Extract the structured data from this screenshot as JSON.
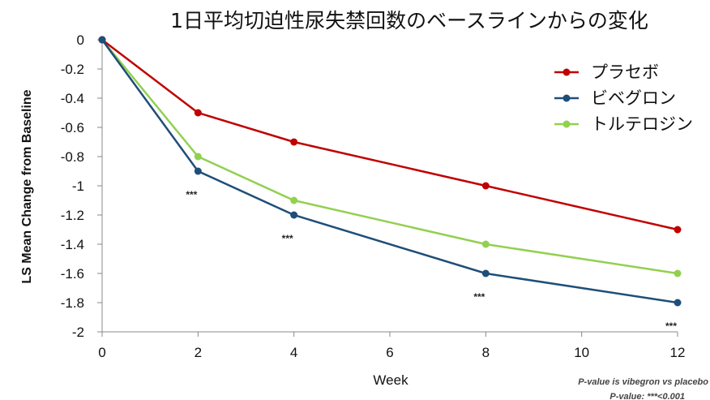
{
  "chart_data": {
    "type": "line",
    "title": "1日平均切迫性尿失禁回数のベースラインからの変化",
    "xlabel": "Week",
    "ylabel": "LS Mean Change from Baseline",
    "x": [
      0,
      2,
      4,
      8,
      12
    ],
    "x_ticks": [
      0,
      2,
      4,
      6,
      8,
      10,
      12
    ],
    "y_ticks": [
      0,
      -0.2,
      -0.4,
      -0.6,
      -0.8,
      -1,
      -1.2,
      -1.4,
      -1.6,
      -1.8,
      -2
    ],
    "ylim": [
      -2,
      0
    ],
    "grid": false,
    "legend_position": "top-right",
    "series": [
      {
        "name": "プラセボ",
        "color": "#c00000",
        "values": [
          0,
          -0.5,
          -0.7,
          -1.0,
          -1.3
        ]
      },
      {
        "name": "ビベグロン",
        "color": "#1f4e79",
        "values": [
          0,
          -0.9,
          -1.2,
          -1.6,
          -1.8
        ]
      },
      {
        "name": "トルテロジン",
        "color": "#92d050",
        "values": [
          0,
          -0.8,
          -1.1,
          -1.4,
          -1.6
        ]
      }
    ],
    "annotations": [
      {
        "x": 2,
        "text": "***"
      },
      {
        "x": 4,
        "text": "***"
      },
      {
        "x": 8,
        "text": "***"
      },
      {
        "x": 12,
        "text": "***"
      }
    ],
    "footnotes": [
      "P-value is vibegron vs placebo",
      "P-value: ***<0.001"
    ]
  }
}
